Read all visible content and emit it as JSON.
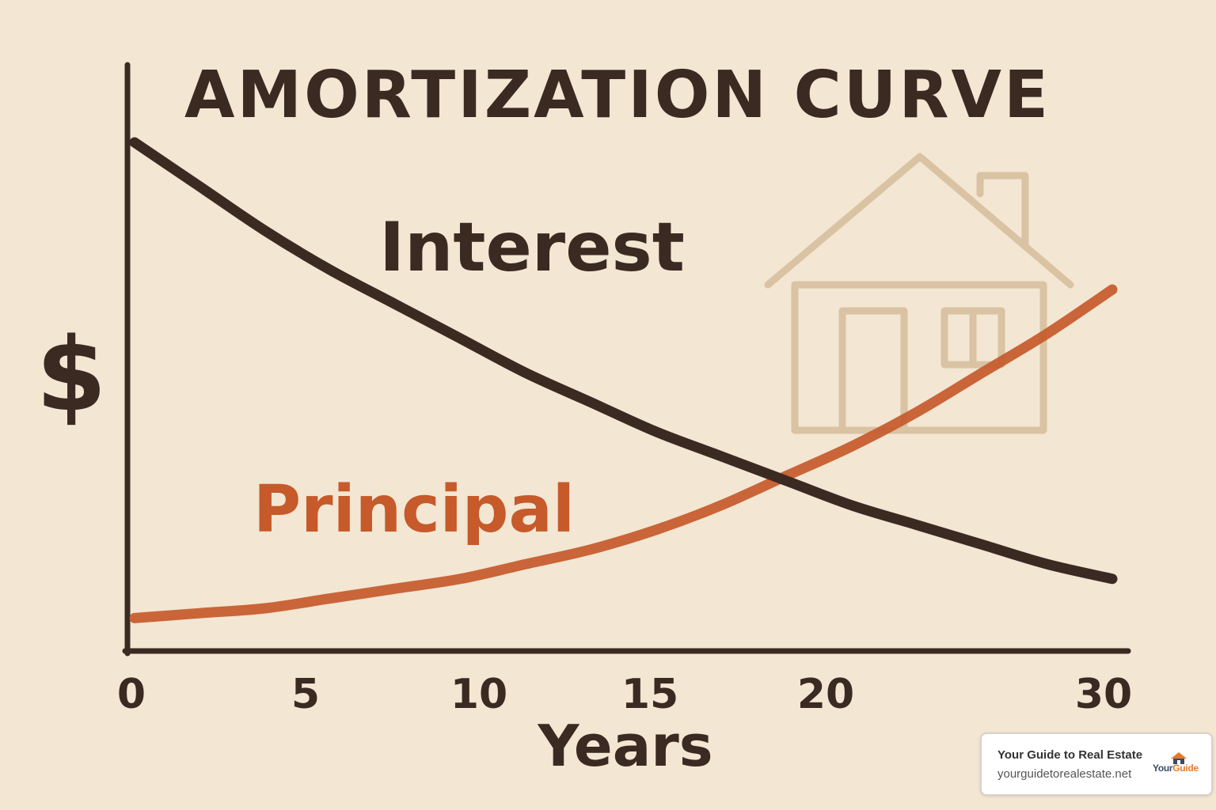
{
  "chart_data": {
    "type": "line",
    "title": "AMORTIZATION CURVE",
    "xlabel": "Years",
    "ylabel": "$",
    "xlim": [
      0,
      30
    ],
    "x_ticks": [
      "0",
      "5",
      "10",
      "15",
      "20",
      "30"
    ],
    "grid": false,
    "series": [
      {
        "name": "Interest",
        "color": "#3a2a22",
        "x": [
          0,
          2,
          4,
          6,
          8,
          10,
          12,
          14,
          16,
          18,
          20,
          22,
          24,
          26,
          28,
          30
        ],
        "y": [
          100,
          91,
          82,
          74,
          67,
          60,
          53,
          47,
          41,
          36,
          31,
          26,
          22,
          18,
          14,
          11
        ]
      },
      {
        "name": "Principal",
        "color": "#c65a2a",
        "x": [
          0,
          2,
          4,
          6,
          8,
          10,
          12,
          14,
          16,
          18,
          20,
          22,
          24,
          26,
          28,
          30
        ],
        "y": [
          3,
          4,
          5,
          7,
          9,
          11,
          14,
          17,
          21,
          26,
          32,
          38,
          45,
          53,
          61,
          70
        ]
      }
    ]
  },
  "branding": {
    "title": "Your Guide to Real Estate",
    "url": "yourguidetorealestate.net",
    "logo_text_main": "Your",
    "logo_text_accent": "Guide",
    "logo_icon": "house-logo-icon"
  },
  "decoration": {
    "house_icon": "house-outline-icon",
    "house_color": "#d9c3a3"
  },
  "colors": {
    "background": "#f3e6d3",
    "axis": "#3a2a22",
    "text": "#3a2a22",
    "principal": "#c65a2a"
  }
}
